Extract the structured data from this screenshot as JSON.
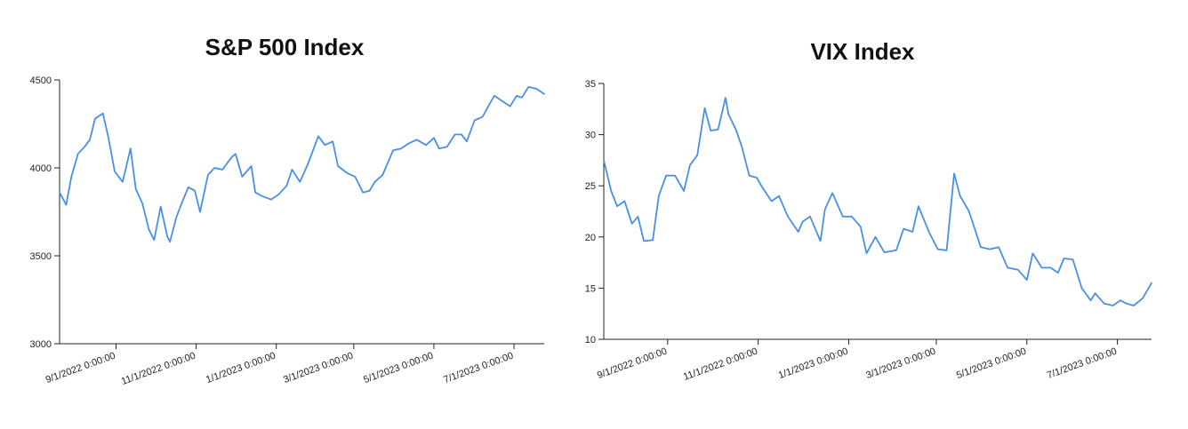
{
  "line_color": "#4a8fe7",
  "chart_data": [
    {
      "type": "line",
      "title": "S&P 500 Index",
      "xlabel": "",
      "ylabel": "",
      "ylim": [
        3000,
        4500
      ],
      "xlim": [
        "2022-07-20",
        "2023-07-24"
      ],
      "y_ticks": [
        3000,
        3500,
        4000,
        4500
      ],
      "y_tick_labels": [
        "3000",
        "3500",
        "4000",
        "4500"
      ],
      "x_ticks": [
        "2022-09-01",
        "2022-11-01",
        "2023-01-01",
        "2023-03-01",
        "2023-05-01",
        "2023-07-01"
      ],
      "x_tick_labels": [
        "9/1/2022 0:00:00",
        "11/1/2022 0:00:00",
        "1/1/2023 0:00:00",
        "3/1/2023 0:00:00",
        "5/1/2023 0:00:00",
        "7/1/2023 0:00:00"
      ],
      "grid": false,
      "series": [
        {
          "x": [
            "2022-07-20",
            "2022-07-25",
            "2022-07-29",
            "2022-08-03",
            "2022-08-08",
            "2022-08-12",
            "2022-08-16",
            "2022-08-22",
            "2022-08-26",
            "2022-08-31",
            "2022-09-06",
            "2022-09-12",
            "2022-09-16",
            "2022-09-21",
            "2022-09-26",
            "2022-09-30",
            "2022-10-05",
            "2022-10-10",
            "2022-10-12",
            "2022-10-17",
            "2022-10-21",
            "2022-10-26",
            "2022-10-31",
            "2022-11-04",
            "2022-11-10",
            "2022-11-15",
            "2022-11-21",
            "2022-11-28",
            "2022-12-01",
            "2022-12-06",
            "2022-12-13",
            "2022-12-16",
            "2022-12-21",
            "2022-12-28",
            "2023-01-03",
            "2023-01-09",
            "2023-01-13",
            "2023-01-19",
            "2023-01-25",
            "2023-02-02",
            "2023-02-07",
            "2023-02-13",
            "2023-02-17",
            "2023-02-24",
            "2023-03-02",
            "2023-03-08",
            "2023-03-13",
            "2023-03-17",
            "2023-03-23",
            "2023-03-31",
            "2023-04-06",
            "2023-04-12",
            "2023-04-18",
            "2023-04-25",
            "2023-05-01",
            "2023-05-05",
            "2023-05-11",
            "2023-05-17",
            "2023-05-22",
            "2023-05-26",
            "2023-06-01",
            "2023-06-07",
            "2023-06-13",
            "2023-06-16",
            "2023-06-22",
            "2023-06-28",
            "2023-07-03",
            "2023-07-07",
            "2023-07-12",
            "2023-07-18",
            "2023-07-24"
          ],
          "y": [
            3860,
            3790,
            3950,
            4080,
            4120,
            4160,
            4280,
            4310,
            4180,
            3980,
            3920,
            4110,
            3880,
            3800,
            3650,
            3590,
            3780,
            3610,
            3580,
            3720,
            3800,
            3890,
            3870,
            3750,
            3960,
            4000,
            3990,
            4060,
            4080,
            3950,
            4010,
            3860,
            3840,
            3820,
            3850,
            3900,
            3990,
            3920,
            4020,
            4180,
            4130,
            4150,
            4010,
            3970,
            3950,
            3860,
            3870,
            3920,
            3960,
            4100,
            4110,
            4140,
            4160,
            4130,
            4170,
            4110,
            4120,
            4190,
            4190,
            4150,
            4270,
            4290,
            4370,
            4410,
            4380,
            4350,
            4410,
            4400,
            4460,
            4450,
            4420
          ]
        }
      ]
    },
    {
      "type": "line",
      "title": "VIX Index",
      "xlabel": "",
      "ylabel": "",
      "ylim": [
        10,
        35
      ],
      "xlim": [
        "2022-07-20",
        "2023-07-24"
      ],
      "y_ticks": [
        10,
        15,
        20,
        25,
        30,
        35
      ],
      "y_tick_labels": [
        "10",
        "15",
        "20",
        "25",
        "30",
        "35"
      ],
      "x_ticks": [
        "2022-09-01",
        "2022-11-01",
        "2023-01-01",
        "2023-03-01",
        "2023-05-01",
        "2023-07-01"
      ],
      "x_tick_labels": [
        "9/1/2022 0:00:00",
        "11/1/2022 0:00:00",
        "1/1/2023 0:00:00",
        "3/1/2023 0:00:00",
        "5/1/2023 0:00:00",
        "7/1/2023 0:00:00"
      ],
      "grid": false,
      "series": [
        {
          "x": [
            "2022-07-20",
            "2022-07-25",
            "2022-07-29",
            "2022-08-03",
            "2022-08-08",
            "2022-08-12",
            "2022-08-16",
            "2022-08-22",
            "2022-08-26",
            "2022-08-31",
            "2022-09-06",
            "2022-09-12",
            "2022-09-16",
            "2022-09-21",
            "2022-09-26",
            "2022-09-30",
            "2022-10-05",
            "2022-10-10",
            "2022-10-12",
            "2022-10-17",
            "2022-10-21",
            "2022-10-26",
            "2022-10-31",
            "2022-11-04",
            "2022-11-10",
            "2022-11-15",
            "2022-11-21",
            "2022-11-28",
            "2022-12-01",
            "2022-12-06",
            "2022-12-13",
            "2022-12-16",
            "2022-12-21",
            "2022-12-28",
            "2023-01-03",
            "2023-01-09",
            "2023-01-13",
            "2023-01-19",
            "2023-01-25",
            "2023-02-02",
            "2023-02-07",
            "2023-02-13",
            "2023-02-17",
            "2023-02-24",
            "2023-03-02",
            "2023-03-08",
            "2023-03-13",
            "2023-03-17",
            "2023-03-23",
            "2023-03-31",
            "2023-04-06",
            "2023-04-12",
            "2023-04-18",
            "2023-04-25",
            "2023-05-01",
            "2023-05-05",
            "2023-05-11",
            "2023-05-17",
            "2023-05-22",
            "2023-05-26",
            "2023-06-01",
            "2023-06-07",
            "2023-06-13",
            "2023-06-16",
            "2023-06-22",
            "2023-06-28",
            "2023-07-03",
            "2023-07-07",
            "2023-07-12",
            "2023-07-18",
            "2023-07-24"
          ],
          "y": [
            27.5,
            24.5,
            23.0,
            23.5,
            21.3,
            22.0,
            19.6,
            19.7,
            24.0,
            26.0,
            26.0,
            24.5,
            27.0,
            28.0,
            32.6,
            30.4,
            30.5,
            33.6,
            32.0,
            30.5,
            28.8,
            26.0,
            25.8,
            24.8,
            23.5,
            24.0,
            22.0,
            20.5,
            21.5,
            22.0,
            19.6,
            22.7,
            24.3,
            22.0,
            22.0,
            21.0,
            18.4,
            20.0,
            18.5,
            18.7,
            20.8,
            20.5,
            23.0,
            20.5,
            18.8,
            18.7,
            26.2,
            24.0,
            22.5,
            19.0,
            18.8,
            19.0,
            17.0,
            16.8,
            15.8,
            18.4,
            17.0,
            17.0,
            16.5,
            17.9,
            17.8,
            15.0,
            13.8,
            14.5,
            13.5,
            13.3,
            13.8,
            13.5,
            13.3,
            14.0,
            15.5
          ]
        }
      ]
    }
  ]
}
